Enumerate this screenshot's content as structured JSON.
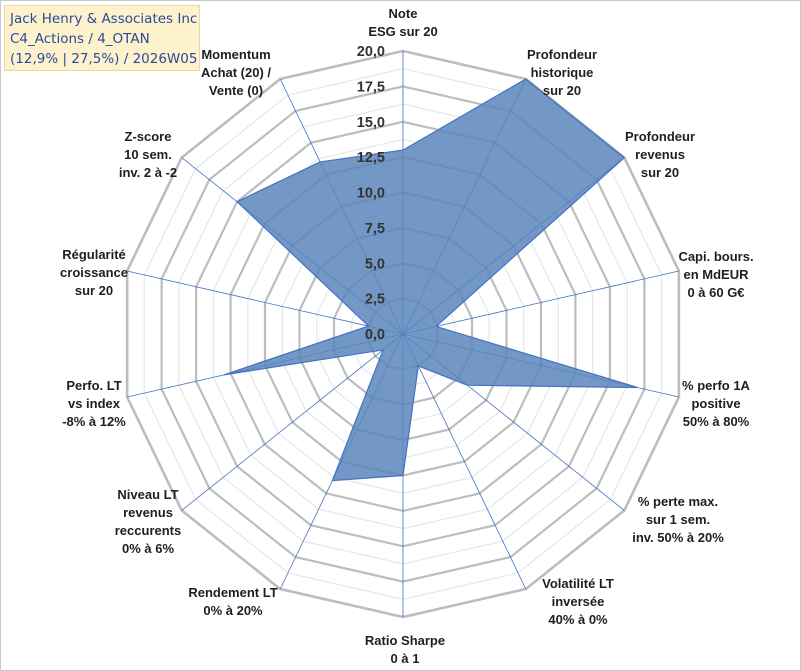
{
  "title": {
    "line1": "Jack Henry & Associates Inc",
    "line2": "C4_Actions / 4_OTAN",
    "line3": "(12,9% | 27,5%) / 2026W05"
  },
  "colors": {
    "fill": "#5b86bb",
    "stroke": "#4472c4",
    "grid": "#c0c0c0",
    "spoke": "#4472c4",
    "title_bg": "#fdf2cc",
    "title_text": "#2b4a9a"
  },
  "chart_data": {
    "type": "radar",
    "rmax": 20,
    "ticks": [
      {
        "value": 0,
        "label": "0,0"
      },
      {
        "value": 2.5,
        "label": "2,5"
      },
      {
        "value": 5,
        "label": "5,0"
      },
      {
        "value": 7.5,
        "label": "7,5"
      },
      {
        "value": 10,
        "label": "10,0"
      },
      {
        "value": 12.5,
        "label": "12,5"
      },
      {
        "value": 15,
        "label": "15,0"
      },
      {
        "value": 17.5,
        "label": "17,5"
      },
      {
        "value": 20,
        "label": "20,0"
      }
    ],
    "axes": [
      {
        "label": [
          "Note",
          "ESG sur 20"
        ],
        "value": 13.0
      },
      {
        "label": [
          "Profondeur",
          "historique",
          "sur 20"
        ],
        "value": 20.0
      },
      {
        "label": [
          "Profondeur",
          "revenus",
          "sur 20"
        ],
        "value": 20.0
      },
      {
        "label": [
          "Capi. bours.",
          "en MdEUR",
          "0 à 60 G€"
        ],
        "value": 2.4
      },
      {
        "label": [
          "% perfo 1A",
          "positive",
          "50% à 80%"
        ],
        "value": 17.0
      },
      {
        "label": [
          "% perte max.",
          "sur 1 sem.",
          "inv. 50% à 20%"
        ],
        "value": 5.8
      },
      {
        "label": [
          "Volatilité LT",
          "inversée",
          "40% à 0%"
        ],
        "value": 2.5
      },
      {
        "label": [
          "Ratio Sharpe",
          "0 à 1"
        ],
        "value": 10.0
      },
      {
        "label": [
          "Rendement LT",
          "0% à 20%"
        ],
        "value": 11.5
      },
      {
        "label": [
          "Niveau LT",
          "revenus",
          "reccurents",
          "0% à 6%"
        ],
        "value": 1.8
      },
      {
        "label": [
          "Perfo. LT",
          "vs index",
          "-8% à 12%"
        ],
        "value": 13.0
      },
      {
        "label": [
          "Régularité",
          "croissance",
          "sur 20"
        ],
        "value": 2.5
      },
      {
        "label": [
          "Z-score",
          "10 sem.",
          "inv. 2 à -2"
        ],
        "value": 15.0
      },
      {
        "label": [
          "Momentum",
          "Achat (20) /",
          "Vente (0)"
        ],
        "value": 13.5
      }
    ]
  }
}
